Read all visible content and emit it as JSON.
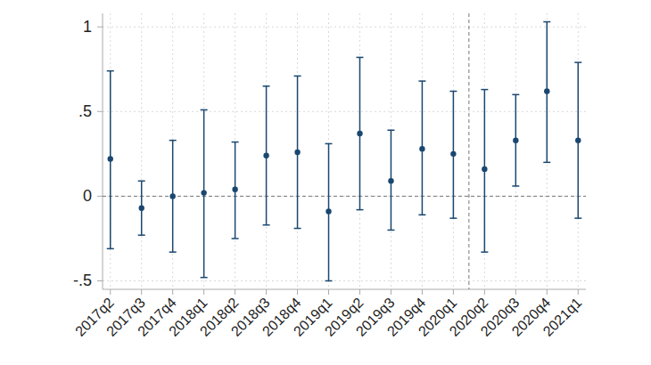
{
  "chart_data": {
    "type": "errorbar",
    "categories": [
      "2017q2",
      "2017q3",
      "2017q4",
      "2018q1",
      "2018q2",
      "2018q3",
      "2018q4",
      "2019q1",
      "2019q2",
      "2019q3",
      "2019q4",
      "2020q1",
      "2020q2",
      "2020q3",
      "2020q4",
      "2021q1"
    ],
    "values": [
      0.22,
      -0.07,
      0.0,
      0.02,
      0.04,
      0.24,
      0.26,
      -0.09,
      0.37,
      0.09,
      0.28,
      0.25,
      0.16,
      0.33,
      0.62,
      0.33
    ],
    "ci_low": [
      -0.31,
      -0.23,
      -0.33,
      -0.48,
      -0.25,
      -0.17,
      -0.19,
      -0.5,
      -0.08,
      -0.2,
      -0.11,
      -0.13,
      -0.33,
      0.06,
      0.2,
      -0.13
    ],
    "ci_high": [
      0.74,
      0.09,
      0.33,
      0.51,
      0.32,
      0.65,
      0.71,
      0.31,
      0.82,
      0.39,
      0.68,
      0.62,
      0.63,
      0.6,
      1.03,
      0.79
    ],
    "color": "#1a476f",
    "ylim": [
      -0.55,
      1.08
    ],
    "yticks": [
      {
        "value": -0.5,
        "label": "-.5"
      },
      0,
      {
        "value": 0.5,
        "label": ".5"
      },
      1
    ],
    "grid": true,
    "reference_lines": {
      "y": 0,
      "after_category": "2020q1"
    }
  }
}
